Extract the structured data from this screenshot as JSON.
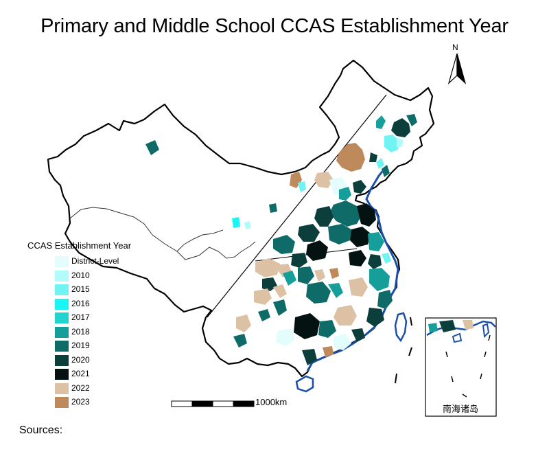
{
  "title": "Primary and Middle School CCAS Establishment Year",
  "legend": {
    "title": "CCAS Establishment Year",
    "items": [
      {
        "label": "District-Level",
        "color": "#e3fdfd"
      },
      {
        "label": "2010",
        "color": "#b2fbfb"
      },
      {
        "label": "2015",
        "color": "#6ff3f3"
      },
      {
        "label": "2016",
        "color": "#19f5f2"
      },
      {
        "label": "2017",
        "color": "#22d4cf"
      },
      {
        "label": "2018",
        "color": "#169f9a"
      },
      {
        "label": "2019",
        "color": "#0f6b67"
      },
      {
        "label": "2020",
        "color": "#0c3f3c"
      },
      {
        "label": "2021",
        "color": "#041312"
      },
      {
        "label": "2022",
        "color": "#ddc1a5"
      },
      {
        "label": "2023",
        "color": "#be8a5b"
      }
    ]
  },
  "scale_bar": {
    "label": "1000km"
  },
  "north_arrow": {
    "label": "N"
  },
  "inset": {
    "label": "南海诸岛"
  },
  "sources_label": "Sources:",
  "colors": {
    "outline": "#000000",
    "coast": "#1a4fa8"
  }
}
